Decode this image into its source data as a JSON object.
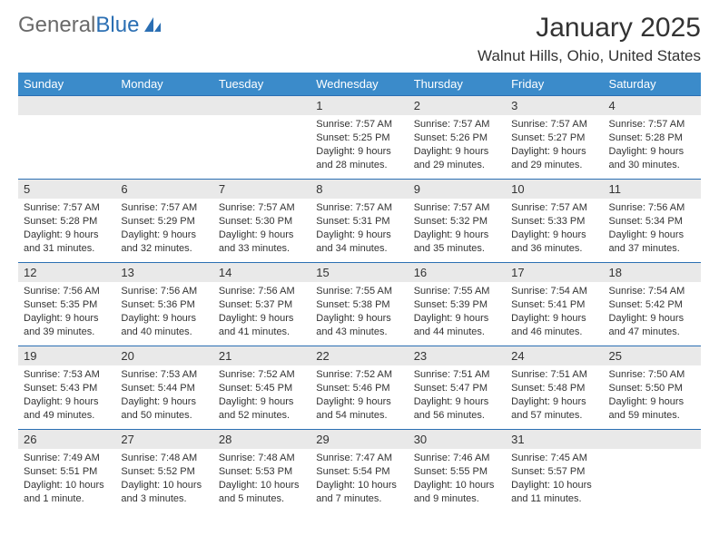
{
  "brand": {
    "part1": "General",
    "part2": "Blue"
  },
  "title": "January 2025",
  "location": "Walnut Hills, Ohio, United States",
  "colors": {
    "header_bg": "#3b8bca",
    "rule": "#2b6fb3",
    "daynum_bg": "#e9e9e9",
    "text": "#333333",
    "brand_gray": "#6a6a6a",
    "brand_blue": "#2b6fb3"
  },
  "weekdays": [
    "Sunday",
    "Monday",
    "Tuesday",
    "Wednesday",
    "Thursday",
    "Friday",
    "Saturday"
  ],
  "weeks": [
    [
      null,
      null,
      null,
      {
        "n": "1",
        "sr": "Sunrise: 7:57 AM",
        "ss": "Sunset: 5:25 PM",
        "d1": "Daylight: 9 hours",
        "d2": "and 28 minutes."
      },
      {
        "n": "2",
        "sr": "Sunrise: 7:57 AM",
        "ss": "Sunset: 5:26 PM",
        "d1": "Daylight: 9 hours",
        "d2": "and 29 minutes."
      },
      {
        "n": "3",
        "sr": "Sunrise: 7:57 AM",
        "ss": "Sunset: 5:27 PM",
        "d1": "Daylight: 9 hours",
        "d2": "and 29 minutes."
      },
      {
        "n": "4",
        "sr": "Sunrise: 7:57 AM",
        "ss": "Sunset: 5:28 PM",
        "d1": "Daylight: 9 hours",
        "d2": "and 30 minutes."
      }
    ],
    [
      {
        "n": "5",
        "sr": "Sunrise: 7:57 AM",
        "ss": "Sunset: 5:28 PM",
        "d1": "Daylight: 9 hours",
        "d2": "and 31 minutes."
      },
      {
        "n": "6",
        "sr": "Sunrise: 7:57 AM",
        "ss": "Sunset: 5:29 PM",
        "d1": "Daylight: 9 hours",
        "d2": "and 32 minutes."
      },
      {
        "n": "7",
        "sr": "Sunrise: 7:57 AM",
        "ss": "Sunset: 5:30 PM",
        "d1": "Daylight: 9 hours",
        "d2": "and 33 minutes."
      },
      {
        "n": "8",
        "sr": "Sunrise: 7:57 AM",
        "ss": "Sunset: 5:31 PM",
        "d1": "Daylight: 9 hours",
        "d2": "and 34 minutes."
      },
      {
        "n": "9",
        "sr": "Sunrise: 7:57 AM",
        "ss": "Sunset: 5:32 PM",
        "d1": "Daylight: 9 hours",
        "d2": "and 35 minutes."
      },
      {
        "n": "10",
        "sr": "Sunrise: 7:57 AM",
        "ss": "Sunset: 5:33 PM",
        "d1": "Daylight: 9 hours",
        "d2": "and 36 minutes."
      },
      {
        "n": "11",
        "sr": "Sunrise: 7:56 AM",
        "ss": "Sunset: 5:34 PM",
        "d1": "Daylight: 9 hours",
        "d2": "and 37 minutes."
      }
    ],
    [
      {
        "n": "12",
        "sr": "Sunrise: 7:56 AM",
        "ss": "Sunset: 5:35 PM",
        "d1": "Daylight: 9 hours",
        "d2": "and 39 minutes."
      },
      {
        "n": "13",
        "sr": "Sunrise: 7:56 AM",
        "ss": "Sunset: 5:36 PM",
        "d1": "Daylight: 9 hours",
        "d2": "and 40 minutes."
      },
      {
        "n": "14",
        "sr": "Sunrise: 7:56 AM",
        "ss": "Sunset: 5:37 PM",
        "d1": "Daylight: 9 hours",
        "d2": "and 41 minutes."
      },
      {
        "n": "15",
        "sr": "Sunrise: 7:55 AM",
        "ss": "Sunset: 5:38 PM",
        "d1": "Daylight: 9 hours",
        "d2": "and 43 minutes."
      },
      {
        "n": "16",
        "sr": "Sunrise: 7:55 AM",
        "ss": "Sunset: 5:39 PM",
        "d1": "Daylight: 9 hours",
        "d2": "and 44 minutes."
      },
      {
        "n": "17",
        "sr": "Sunrise: 7:54 AM",
        "ss": "Sunset: 5:41 PM",
        "d1": "Daylight: 9 hours",
        "d2": "and 46 minutes."
      },
      {
        "n": "18",
        "sr": "Sunrise: 7:54 AM",
        "ss": "Sunset: 5:42 PM",
        "d1": "Daylight: 9 hours",
        "d2": "and 47 minutes."
      }
    ],
    [
      {
        "n": "19",
        "sr": "Sunrise: 7:53 AM",
        "ss": "Sunset: 5:43 PM",
        "d1": "Daylight: 9 hours",
        "d2": "and 49 minutes."
      },
      {
        "n": "20",
        "sr": "Sunrise: 7:53 AM",
        "ss": "Sunset: 5:44 PM",
        "d1": "Daylight: 9 hours",
        "d2": "and 50 minutes."
      },
      {
        "n": "21",
        "sr": "Sunrise: 7:52 AM",
        "ss": "Sunset: 5:45 PM",
        "d1": "Daylight: 9 hours",
        "d2": "and 52 minutes."
      },
      {
        "n": "22",
        "sr": "Sunrise: 7:52 AM",
        "ss": "Sunset: 5:46 PM",
        "d1": "Daylight: 9 hours",
        "d2": "and 54 minutes."
      },
      {
        "n": "23",
        "sr": "Sunrise: 7:51 AM",
        "ss": "Sunset: 5:47 PM",
        "d1": "Daylight: 9 hours",
        "d2": "and 56 minutes."
      },
      {
        "n": "24",
        "sr": "Sunrise: 7:51 AM",
        "ss": "Sunset: 5:48 PM",
        "d1": "Daylight: 9 hours",
        "d2": "and 57 minutes."
      },
      {
        "n": "25",
        "sr": "Sunrise: 7:50 AM",
        "ss": "Sunset: 5:50 PM",
        "d1": "Daylight: 9 hours",
        "d2": "and 59 minutes."
      }
    ],
    [
      {
        "n": "26",
        "sr": "Sunrise: 7:49 AM",
        "ss": "Sunset: 5:51 PM",
        "d1": "Daylight: 10 hours",
        "d2": "and 1 minute."
      },
      {
        "n": "27",
        "sr": "Sunrise: 7:48 AM",
        "ss": "Sunset: 5:52 PM",
        "d1": "Daylight: 10 hours",
        "d2": "and 3 minutes."
      },
      {
        "n": "28",
        "sr": "Sunrise: 7:48 AM",
        "ss": "Sunset: 5:53 PM",
        "d1": "Daylight: 10 hours",
        "d2": "and 5 minutes."
      },
      {
        "n": "29",
        "sr": "Sunrise: 7:47 AM",
        "ss": "Sunset: 5:54 PM",
        "d1": "Daylight: 10 hours",
        "d2": "and 7 minutes."
      },
      {
        "n": "30",
        "sr": "Sunrise: 7:46 AM",
        "ss": "Sunset: 5:55 PM",
        "d1": "Daylight: 10 hours",
        "d2": "and 9 minutes."
      },
      {
        "n": "31",
        "sr": "Sunrise: 7:45 AM",
        "ss": "Sunset: 5:57 PM",
        "d1": "Daylight: 10 hours",
        "d2": "and 11 minutes."
      },
      null
    ]
  ]
}
